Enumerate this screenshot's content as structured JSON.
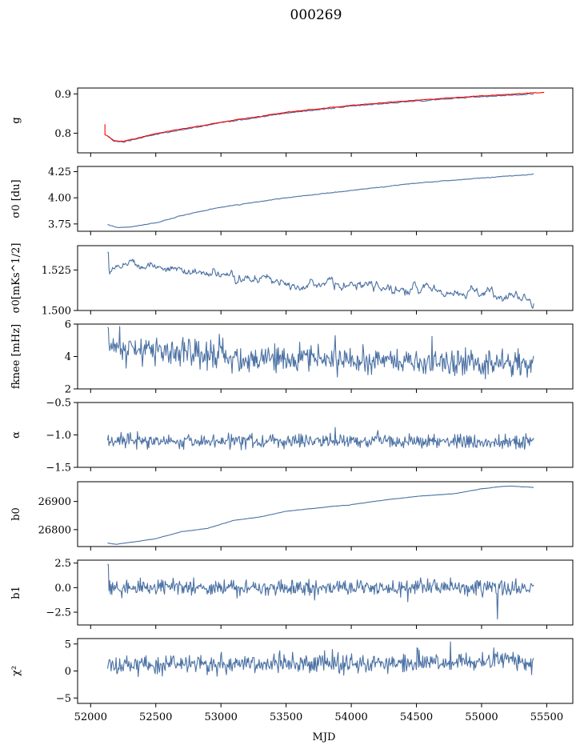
{
  "figure_title": "000269",
  "chart_data": {
    "type": "line",
    "title": "000269",
    "xlabel": "MJD",
    "xlim": [
      51900,
      55700
    ],
    "x_ticks": [
      52000,
      52500,
      53000,
      53500,
      54000,
      54500,
      55000,
      55500
    ],
    "x_tick_labels": [
      "52000",
      "52500",
      "53000",
      "53500",
      "54000",
      "54500",
      "55000",
      "55500"
    ],
    "x_range": [
      52130,
      55400
    ],
    "n_points": 600,
    "colors": {
      "series": "#4c72a4",
      "fit": "#ff0000"
    },
    "panels": [
      {
        "id": "g",
        "ylabel": "g",
        "ylim": [
          0.75,
          0.915
        ],
        "y_ticks": [
          0.8,
          0.9
        ],
        "y_tick_labels": [
          "0.8",
          "0.9"
        ],
        "series": [
          {
            "name": "g",
            "color": "#4c72a4",
            "profile": [
              [
                52100,
                0.8
              ],
              [
                52180,
                0.78
              ],
              [
                52250,
                0.778
              ],
              [
                52500,
                0.797
              ],
              [
                53000,
                0.826
              ],
              [
                53500,
                0.851
              ],
              [
                54000,
                0.869
              ],
              [
                54500,
                0.882
              ],
              [
                55000,
                0.893
              ],
              [
                55400,
                0.9
              ]
            ],
            "noise": 0.0015,
            "smooth": 1
          },
          {
            "name": "g fit",
            "color": "#ff0000",
            "profile": [
              [
                52100,
                0.8
              ],
              [
                52180,
                0.781
              ],
              [
                52250,
                0.779
              ],
              [
                52500,
                0.799
              ],
              [
                53000,
                0.828
              ],
              [
                53500,
                0.853
              ],
              [
                54000,
                0.871
              ],
              [
                54500,
                0.884
              ],
              [
                55000,
                0.895
              ],
              [
                55480,
                0.904
              ]
            ],
            "noise": 0.0008,
            "smooth": 1,
            "spike_at": 52110,
            "spike_to": 0.822
          }
        ]
      },
      {
        "id": "sigma0-du",
        "ylabel": "σ0 [du]",
        "ylim": [
          3.68,
          4.3
        ],
        "y_ticks": [
          3.75,
          4.0,
          4.25
        ],
        "y_tick_labels": [
          "3.75",
          "4.00",
          "4.25"
        ],
        "series": [
          {
            "name": "sigma0 du",
            "color": "#4c72a4",
            "profile": [
              [
                52130,
                3.745
              ],
              [
                52200,
                3.715
              ],
              [
                52300,
                3.72
              ],
              [
                52500,
                3.76
              ],
              [
                52700,
                3.83
              ],
              [
                53000,
                3.91
              ],
              [
                53500,
                4.0
              ],
              [
                54000,
                4.07
              ],
              [
                54500,
                4.14
              ],
              [
                55000,
                4.19
              ],
              [
                55400,
                4.225
              ]
            ],
            "noise": 0.003,
            "smooth": 1
          }
        ]
      },
      {
        "id": "sigma0-mks",
        "ylabel": "σ0[mKs^1/2]",
        "ylim": [
          1.5,
          1.54
        ],
        "y_ticks": [
          1.5,
          1.525
        ],
        "y_tick_labels": [
          "1.500",
          "1.525"
        ],
        "series": [
          {
            "name": "sigma0 mKs",
            "color": "#4c72a4",
            "profile": [
              [
                52130,
                1.527
              ],
              [
                52300,
                1.53
              ],
              [
                52600,
                1.526
              ],
              [
                53000,
                1.521
              ],
              [
                53500,
                1.518
              ],
              [
                54000,
                1.515
              ],
              [
                54500,
                1.513
              ],
              [
                55000,
                1.511
              ],
              [
                55400,
                1.506
              ]
            ],
            "noise": 0.0022,
            "smooth": 2,
            "start_spike": 1.536
          }
        ]
      },
      {
        "id": "fknee",
        "ylabel": "fknee [mHz]",
        "ylim": [
          2,
          6
        ],
        "y_ticks": [
          2,
          4,
          6
        ],
        "y_tick_labels": [
          "2",
          "4",
          "6"
        ],
        "series": [
          {
            "name": "fknee",
            "color": "#4c72a4",
            "profile": [
              [
                52130,
                4.6
              ],
              [
                52600,
                4.3
              ],
              [
                53000,
                4.05
              ],
              [
                53500,
                3.9
              ],
              [
                54000,
                3.75
              ],
              [
                54500,
                3.65
              ],
              [
                55000,
                3.6
              ],
              [
                55400,
                3.5
              ]
            ],
            "noise": 0.45,
            "smooth": 0,
            "start_spike": 5.8
          }
        ]
      },
      {
        "id": "alpha",
        "ylabel": "α",
        "ylim": [
          -1.5,
          -0.5
        ],
        "y_ticks": [
          -1.5,
          -1.0,
          -0.5
        ],
        "y_tick_labels": [
          "−1.5",
          "−1.0",
          "−0.5"
        ],
        "series": [
          {
            "name": "alpha",
            "color": "#4c72a4",
            "profile": [
              [
                52130,
                -1.1
              ],
              [
                55400,
                -1.1
              ]
            ],
            "noise": 0.055,
            "smooth": 0
          }
        ]
      },
      {
        "id": "b0",
        "ylabel": "b0",
        "ylim": [
          26740,
          26970
        ],
        "y_ticks": [
          26800,
          26900
        ],
        "y_tick_labels": [
          "26800",
          "26900"
        ],
        "series": [
          {
            "name": "b0",
            "color": "#4c72a4",
            "profile": [
              [
                52130,
                26752
              ],
              [
                52200,
                26748
              ],
              [
                52500,
                26768
              ],
              [
                52700,
                26793
              ],
              [
                52900,
                26805
              ],
              [
                53100,
                26833
              ],
              [
                53300,
                26845
              ],
              [
                53500,
                26865
              ],
              [
                53800,
                26880
              ],
              [
                54000,
                26888
              ],
              [
                54200,
                26902
              ],
              [
                54500,
                26918
              ],
              [
                54800,
                26928
              ],
              [
                55000,
                26945
              ],
              [
                55200,
                26955
              ],
              [
                55400,
                26950
              ]
            ],
            "noise": 0.6,
            "smooth": 1
          }
        ]
      },
      {
        "id": "b1",
        "ylabel": "b1",
        "ylim": [
          -3.8,
          2.8
        ],
        "y_ticks": [
          -2.5,
          0.0,
          2.5
        ],
        "y_tick_labels": [
          "−2.5",
          "0.0",
          "2.5"
        ],
        "series": [
          {
            "name": "b1",
            "color": "#4c72a4",
            "profile": [
              [
                52130,
                0.0
              ],
              [
                55400,
                0.0
              ]
            ],
            "noise": 0.42,
            "smooth": 0,
            "start_spike": 2.4,
            "dip_at": 55120,
            "dip_to": -3.2
          }
        ]
      },
      {
        "id": "chi2",
        "ylabel": "χ²",
        "ylim": [
          -6,
          6
        ],
        "y_ticks": [
          -5,
          0,
          5
        ],
        "y_tick_labels": [
          "−5",
          "0",
          "5"
        ],
        "series": [
          {
            "name": "chi2",
            "color": "#4c72a4",
            "profile": [
              [
                52130,
                0.8
              ],
              [
                52500,
                1.2
              ],
              [
                53000,
                1.3
              ],
              [
                54000,
                1.5
              ],
              [
                55000,
                1.7
              ],
              [
                55400,
                2.0
              ]
            ],
            "noise": 0.85,
            "smooth": 0,
            "peak_at": 54760,
            "peak_to": 5.4
          }
        ]
      }
    ]
  }
}
